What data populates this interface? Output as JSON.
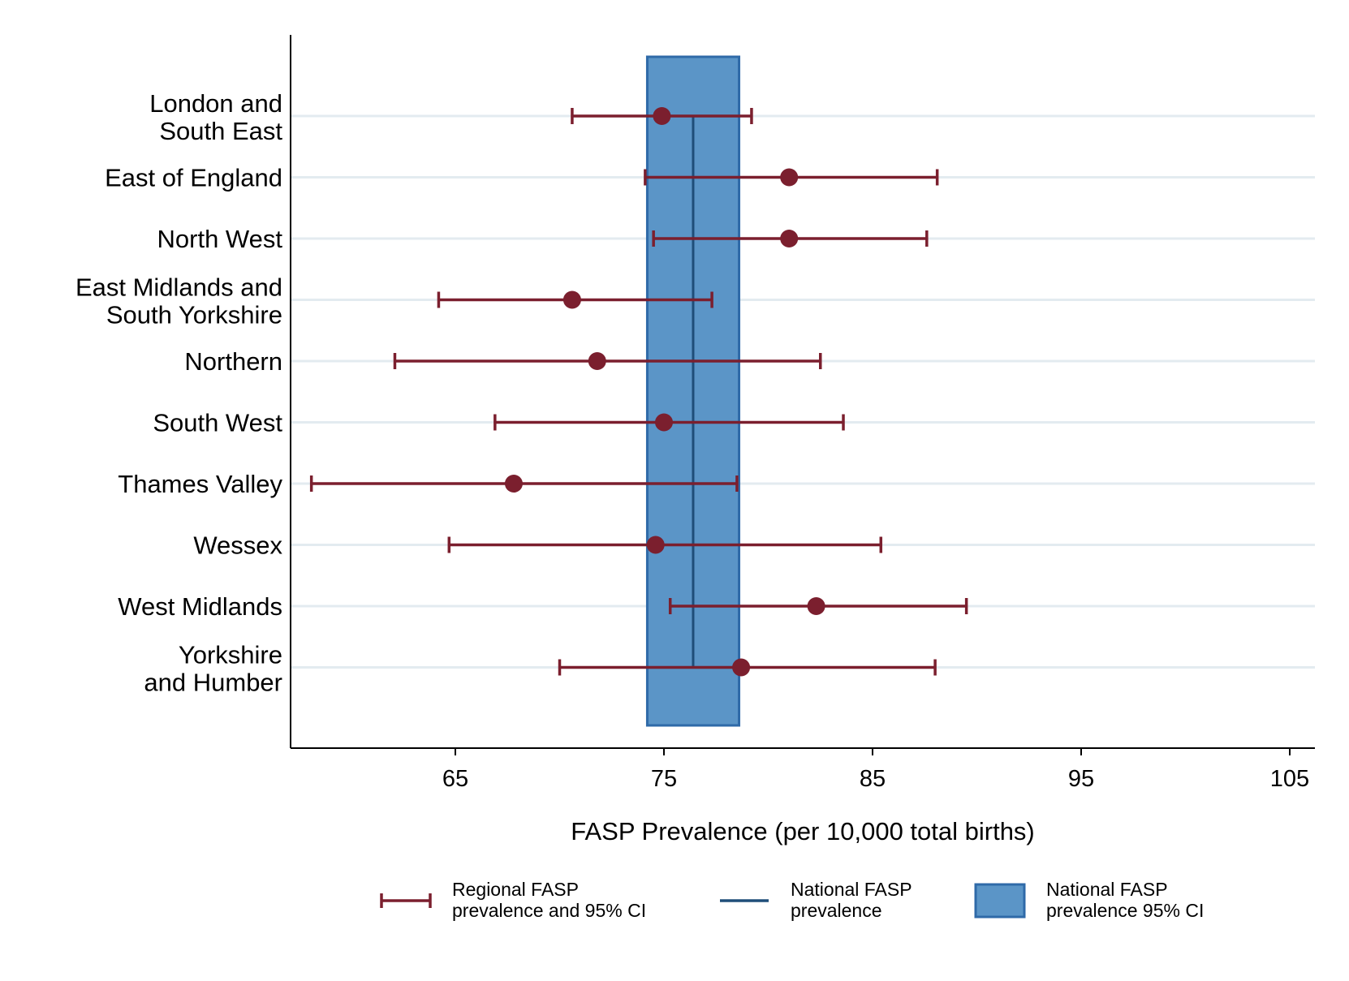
{
  "chart_data": {
    "type": "forest",
    "xlabel": "FASP Prevalence (per 10,000 total births)",
    "xlim": [
      57.5,
      106
    ],
    "xticks": [
      65,
      75,
      85,
      95,
      105
    ],
    "xtick_labels": [
      "65",
      "75",
      "85",
      "95",
      "105"
    ],
    "grid": "horizontal",
    "colors": {
      "regional": "#7b1f2e",
      "national_line": "#1f4e79",
      "national_ci_fill": "#5b95c7",
      "national_ci_stroke": "#2f6aa8",
      "grid": "#e3ebf0"
    },
    "national": {
      "estimate": 76.4,
      "ci_lower": 74.2,
      "ci_upper": 78.6
    },
    "regions": [
      {
        "label": [
          "London and",
          "South East"
        ],
        "estimate": 74.9,
        "ci_lower": 70.6,
        "ci_upper": 79.2
      },
      {
        "label": [
          "East of England"
        ],
        "estimate": 81.0,
        "ci_lower": 74.1,
        "ci_upper": 88.1
      },
      {
        "label": [
          "North West"
        ],
        "estimate": 81.0,
        "ci_lower": 74.5,
        "ci_upper": 87.6
      },
      {
        "label": [
          "East Midlands and",
          "South Yorkshire"
        ],
        "estimate": 70.6,
        "ci_lower": 64.2,
        "ci_upper": 77.3
      },
      {
        "label": [
          "Northern"
        ],
        "estimate": 71.8,
        "ci_lower": 62.1,
        "ci_upper": 82.5
      },
      {
        "label": [
          "South West"
        ],
        "estimate": 75.0,
        "ci_lower": 66.9,
        "ci_upper": 83.6
      },
      {
        "label": [
          "Thames Valley"
        ],
        "estimate": 67.8,
        "ci_lower": 58.1,
        "ci_upper": 78.5
      },
      {
        "label": [
          "Wessex"
        ],
        "estimate": 74.6,
        "ci_lower": 64.7,
        "ci_upper": 85.4
      },
      {
        "label": [
          "West Midlands"
        ],
        "estimate": 82.3,
        "ci_lower": 75.3,
        "ci_upper": 89.5
      },
      {
        "label": [
          "Yorkshire",
          "and Humber"
        ],
        "estimate": 78.7,
        "ci_lower": 70.0,
        "ci_upper": 88.0
      }
    ],
    "legend": {
      "position": "bottom",
      "items": [
        {
          "symbol": "errorbar",
          "lines": [
            "Regional FASP",
            "prevalence and 95% CI"
          ]
        },
        {
          "symbol": "line",
          "lines": [
            "National FASP",
            "prevalence"
          ]
        },
        {
          "symbol": "box",
          "lines": [
            "National FASP",
            "prevalence 95% CI"
          ]
        }
      ]
    }
  }
}
